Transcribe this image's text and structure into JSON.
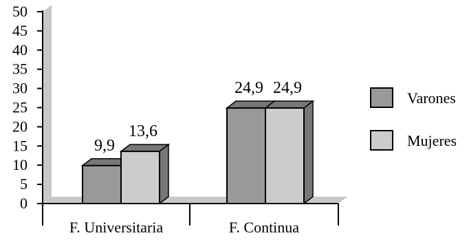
{
  "chart_data": {
    "type": "bar",
    "categories": [
      "F. Universitaria",
      "F. Continua"
    ],
    "series": [
      {
        "name": "Varones",
        "values": [
          9.9,
          24.9
        ],
        "labels": [
          "9,9",
          "24,9"
        ]
      },
      {
        "name": "Mujeres",
        "values": [
          13.6,
          24.9
        ],
        "labels": [
          "13,6",
          "24,9"
        ]
      }
    ],
    "ylim": [
      0,
      50
    ],
    "yticks": [
      0,
      5,
      10,
      15,
      20,
      25,
      30,
      35,
      40,
      45,
      50
    ],
    "ytick_labels": [
      "0",
      "5",
      "10",
      "15",
      "20",
      "25",
      "30",
      "35",
      "40",
      "45",
      "50"
    ],
    "grid": false,
    "legend_position": "right",
    "style": "3d"
  },
  "colors": {
    "varones": "#999999",
    "mujeres": "#cccccc",
    "depth": "#777777",
    "back": "#c8c8c8"
  }
}
